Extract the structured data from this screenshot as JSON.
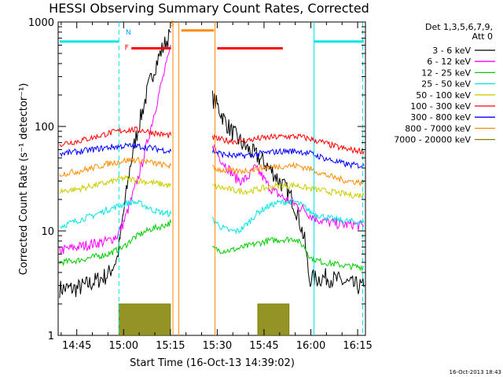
{
  "chart_data": {
    "type": "line",
    "title": "HESSI Observing Summary Count Rates, Corrected",
    "xlabel": "Start Time (16-Oct-13 14:39:02)",
    "ylabel": "Corrected Count Rate (s⁻¹ detector⁻¹)",
    "y_scale": "log",
    "ylim": [
      1,
      1000
    ],
    "x_range_min": [
      39.03,
      137.5
    ],
    "x_ticks": [
      {
        "label": "14:45",
        "m": 45
      },
      {
        "label": "15:00",
        "m": 60
      },
      {
        "label": "15:15",
        "m": 75
      },
      {
        "label": "15:30",
        "m": 90
      },
      {
        "label": "15:45",
        "m": 105
      },
      {
        "label": "16:00",
        "m": 120
      },
      {
        "label": "16:15",
        "m": 135
      }
    ],
    "y_ticks": [
      {
        "label": "1",
        "v": 1
      },
      {
        "label": "10",
        "v": 10
      },
      {
        "label": "100",
        "v": 100
      },
      {
        "label": "1000",
        "v": 1000
      }
    ],
    "legend_header": [
      "Det 1,3,5,6,7,9,",
      "Att 0"
    ],
    "legend_placement": "right",
    "grid": false,
    "timestamp": "16-Oct-2013 18:43",
    "markers": [
      {
        "label": "N",
        "color": "#00a0ff"
      },
      {
        "label": "F",
        "color": "#ff0000"
      },
      {
        "label": "S",
        "color": "#ff8c00"
      }
    ],
    "series": [
      {
        "name": "3 - 6 keV",
        "color": "#000000",
        "pts": [
          [
            39.5,
            2.8
          ],
          [
            45,
            2.8
          ],
          [
            50,
            3.2
          ],
          [
            55,
            3.8
          ],
          [
            58,
            5.5
          ],
          [
            60,
            15
          ],
          [
            62,
            40
          ],
          [
            64,
            80
          ],
          [
            66,
            140
          ],
          [
            68,
            240
          ],
          [
            70,
            370
          ],
          [
            72,
            520
          ],
          [
            73.5,
            640
          ],
          [
            74.5,
            720
          ],
          [
            75.2,
            800
          ]
        ],
        "pts2": [
          [
            88.5,
            185
          ],
          [
            90,
            160
          ],
          [
            92,
            120
          ],
          [
            94,
            95
          ],
          [
            96,
            80
          ],
          [
            98,
            68
          ],
          [
            100,
            60
          ],
          [
            102,
            54
          ],
          [
            104,
            48
          ],
          [
            106,
            42
          ],
          [
            108,
            36
          ],
          [
            110,
            30
          ],
          [
            112,
            25
          ],
          [
            114,
            20
          ],
          [
            116,
            14
          ],
          [
            118,
            8
          ],
          [
            119.5,
            3.5
          ],
          [
            122,
            3.5
          ],
          [
            125,
            3.6
          ],
          [
            128,
            3.4
          ],
          [
            131,
            3.2
          ],
          [
            134,
            3.0
          ],
          [
            137,
            2.9
          ]
        ]
      },
      {
        "name": "6 - 12 keV",
        "color": "#ff00ff",
        "pts": [
          [
            39.5,
            6.5
          ],
          [
            45,
            7
          ],
          [
            50,
            7.5
          ],
          [
            55,
            8
          ],
          [
            58,
            9
          ],
          [
            60,
            12
          ],
          [
            62,
            18
          ],
          [
            64,
            28
          ],
          [
            66,
            45
          ],
          [
            68,
            80
          ],
          [
            70,
            140
          ],
          [
            72,
            250
          ],
          [
            74,
            420
          ],
          [
            75.2,
            600
          ]
        ],
        "pts2": [
          [
            88.5,
            70
          ],
          [
            90,
            55
          ],
          [
            92,
            45
          ],
          [
            94,
            38
          ],
          [
            96,
            32
          ],
          [
            98,
            30
          ],
          [
            100,
            33
          ],
          [
            102,
            40
          ],
          [
            104,
            35
          ],
          [
            106,
            28
          ],
          [
            108,
            24
          ],
          [
            110,
            22
          ],
          [
            112,
            20
          ],
          [
            114,
            19
          ],
          [
            116,
            17
          ],
          [
            118,
            16
          ],
          [
            120,
            14
          ],
          [
            122,
            13
          ],
          [
            126,
            12
          ],
          [
            130,
            11.5
          ],
          [
            134,
            11.5
          ],
          [
            137,
            11
          ]
        ]
      },
      {
        "name": "12 - 25 keV",
        "color": "#00cc00",
        "pts": [
          [
            39.5,
            5
          ],
          [
            45,
            5.2
          ],
          [
            50,
            5.6
          ],
          [
            55,
            6
          ],
          [
            60,
            7
          ],
          [
            63,
            8.5
          ],
          [
            66,
            9.5
          ],
          [
            69,
            10.5
          ],
          [
            72,
            11
          ],
          [
            75.2,
            12
          ]
        ],
        "pts2": [
          [
            88.5,
            6.8
          ],
          [
            91,
            6.5
          ],
          [
            94,
            6.5
          ],
          [
            97,
            6.8
          ],
          [
            100,
            7.2
          ],
          [
            103,
            7.6
          ],
          [
            106,
            8
          ],
          [
            109,
            8.2
          ],
          [
            112,
            8.3
          ],
          [
            115,
            8.4
          ],
          [
            118,
            7
          ],
          [
            120,
            5.5
          ],
          [
            124,
            5
          ],
          [
            128,
            4.8
          ],
          [
            132,
            4.6
          ],
          [
            137,
            4.5
          ]
        ]
      },
      {
        "name": "25 - 50 keV",
        "color": "#00e5e5",
        "pts": [
          [
            39.5,
            11
          ],
          [
            45,
            12.5
          ],
          [
            50,
            14
          ],
          [
            55,
            16
          ],
          [
            60,
            18
          ],
          [
            63,
            19
          ],
          [
            66,
            18
          ],
          [
            69,
            16
          ],
          [
            72,
            15
          ],
          [
            75.2,
            14.5
          ]
        ],
        "pts2": [
          [
            88.5,
            13
          ],
          [
            91,
            11
          ],
          [
            94,
            10
          ],
          [
            97,
            10
          ],
          [
            100,
            12
          ],
          [
            103,
            15
          ],
          [
            106,
            17
          ],
          [
            109,
            18.5
          ],
          [
            112,
            19
          ],
          [
            115,
            19
          ],
          [
            118,
            17
          ],
          [
            120,
            15
          ],
          [
            123,
            14
          ],
          [
            127,
            13
          ],
          [
            131,
            12.5
          ],
          [
            137,
            12
          ]
        ]
      },
      {
        "name": "50 - 100 keV",
        "color": "#cccc00",
        "pts": [
          [
            39.5,
            24
          ],
          [
            45,
            25
          ],
          [
            50,
            27
          ],
          [
            55,
            29
          ],
          [
            58,
            31
          ],
          [
            60,
            32
          ],
          [
            63,
            31
          ],
          [
            66,
            30
          ],
          [
            69,
            29
          ],
          [
            72,
            28
          ],
          [
            75.2,
            27
          ]
        ],
        "pts2": [
          [
            88.5,
            27
          ],
          [
            91,
            26
          ],
          [
            94,
            25
          ],
          [
            97,
            24
          ],
          [
            100,
            24
          ],
          [
            103,
            25
          ],
          [
            106,
            26
          ],
          [
            109,
            27
          ],
          [
            112,
            27
          ],
          [
            115,
            27.5
          ],
          [
            118,
            26
          ],
          [
            121,
            25
          ],
          [
            125,
            24
          ],
          [
            129,
            23
          ],
          [
            133,
            22
          ],
          [
            137,
            22
          ]
        ]
      },
      {
        "name": "100 - 300 keV",
        "color": "#ff0000",
        "pts": [
          [
            39.5,
            68
          ],
          [
            45,
            72
          ],
          [
            50,
            78
          ],
          [
            55,
            86
          ],
          [
            60,
            92
          ],
          [
            63,
            93
          ],
          [
            66,
            92
          ],
          [
            69,
            88
          ],
          [
            72,
            84
          ],
          [
            75.2,
            82
          ]
        ],
        "pts2": [
          [
            88.5,
            78
          ],
          [
            92,
            74
          ],
          [
            96,
            72
          ],
          [
            100,
            74
          ],
          [
            104,
            77
          ],
          [
            108,
            79
          ],
          [
            112,
            80
          ],
          [
            116,
            80
          ],
          [
            120,
            76
          ],
          [
            124,
            70
          ],
          [
            128,
            64
          ],
          [
            132,
            60
          ],
          [
            137,
            58
          ]
        ]
      },
      {
        "name": "300 - 800 keV",
        "color": "#0000ff",
        "pts": [
          [
            39.5,
            55
          ],
          [
            45,
            57
          ],
          [
            50,
            60
          ],
          [
            55,
            63
          ],
          [
            60,
            65
          ],
          [
            63,
            65
          ],
          [
            66,
            64
          ],
          [
            69,
            62
          ],
          [
            72,
            60
          ],
          [
            75.2,
            58
          ]
        ],
        "pts2": [
          [
            88.5,
            58
          ],
          [
            92,
            54
          ],
          [
            96,
            52
          ],
          [
            100,
            53
          ],
          [
            104,
            55
          ],
          [
            108,
            57
          ],
          [
            112,
            58
          ],
          [
            116,
            58
          ],
          [
            120,
            55
          ],
          [
            124,
            50
          ],
          [
            128,
            46
          ],
          [
            132,
            43
          ],
          [
            137,
            42
          ]
        ]
      },
      {
        "name": "800 - 7000 keV",
        "color": "#ff8c00",
        "pts": [
          [
            39.5,
            35
          ],
          [
            45,
            37
          ],
          [
            50,
            40
          ],
          [
            55,
            44
          ],
          [
            60,
            47
          ],
          [
            63,
            48
          ],
          [
            66,
            47
          ],
          [
            69,
            45
          ],
          [
            72,
            43
          ],
          [
            75.2,
            42
          ]
        ],
        "pts2": [
          [
            88.5,
            40
          ],
          [
            92,
            38
          ],
          [
            96,
            37
          ],
          [
            100,
            38
          ],
          [
            104,
            40
          ],
          [
            108,
            41
          ],
          [
            112,
            42
          ],
          [
            116,
            42
          ],
          [
            120,
            39
          ],
          [
            124,
            35
          ],
          [
            128,
            32
          ],
          [
            132,
            30
          ],
          [
            137,
            29
          ]
        ]
      },
      {
        "name": "7000 - 20000 keV",
        "color": "#808000",
        "pts": [
          [
            58.5,
            1
          ],
          [
            58.5,
            2
          ],
          [
            75,
            2
          ],
          [
            75,
            1
          ]
        ],
        "pts2": [
          [
            103,
            1
          ],
          [
            103,
            2
          ],
          [
            113,
            2
          ],
          [
            113,
            1
          ]
        ]
      }
    ],
    "segments": [
      {
        "color": "#00e5e5",
        "y": 650,
        "x0": 39.5,
        "x1": 58.5
      },
      {
        "color": "#00e5e5",
        "y": 650,
        "x0": 121,
        "x1": 137
      },
      {
        "color": "#ff0000",
        "y": 560,
        "x0": 62.5,
        "x1": 75.2
      },
      {
        "color": "#ff0000",
        "y": 560,
        "x0": 90,
        "x1": 111
      },
      {
        "color": "#ff8c00",
        "y": 830,
        "x0": 78.5,
        "x1": 89
      }
    ],
    "vlines": [
      {
        "color": "#00e5e5",
        "m": 58.5,
        "dashed": true
      },
      {
        "color": "#00e5e5",
        "m": 121,
        "dashed": false
      },
      {
        "color": "#00e5e5",
        "m": 136.6,
        "dashed": true
      },
      {
        "color": "#ff8c00",
        "m": 75.8,
        "dashed": false
      },
      {
        "color": "#ff8c00",
        "m": 77.7,
        "dashed": false
      },
      {
        "color": "#ff8c00",
        "m": 89.3,
        "dashed": false
      }
    ]
  }
}
